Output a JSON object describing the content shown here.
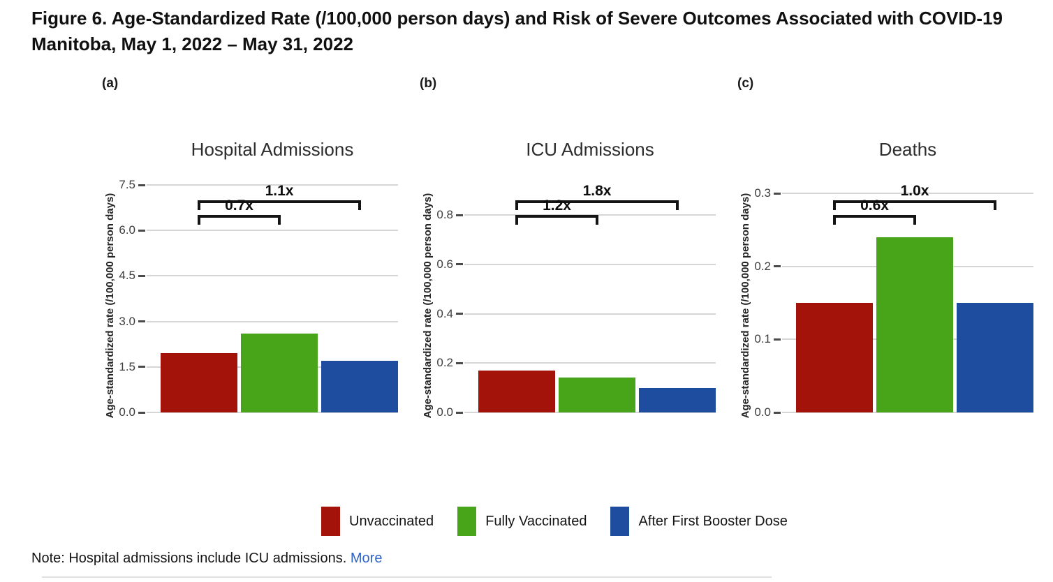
{
  "figure": {
    "title_line1": "Figure 6. Age-Standardized Rate (/100,000 person days) and Risk of Severe Outcomes Associated with COVID-19",
    "title_line2": "Manitoba, May 1, 2022 – May 31, 2022"
  },
  "legend": {
    "items": [
      {
        "label": "Unvaccinated",
        "color": "#a31309"
      },
      {
        "label": "Fully Vaccinated",
        "color": "#48a51a"
      },
      {
        "label": "After First Booster Dose",
        "color": "#1e4c9f"
      }
    ]
  },
  "note": {
    "text": "Note: Hospital admissions include ICU admissions.",
    "link_label": "More"
  },
  "colors": {
    "unvaccinated": "#a31309",
    "fully_vaccinated": "#48a51a",
    "after_first_booster": "#1e4c9f",
    "gridline": "#d6d6d6",
    "bracket": "#141414",
    "link": "#2e62c8"
  },
  "chart_data": [
    {
      "type": "bar",
      "panel_label": "(a)",
      "title": "Hospital Admissions",
      "ylabel": "Age-standardized rate (/100,000 person days)",
      "xlabel": "",
      "categories": [
        "Unvaccinated",
        "Fully Vaccinated",
        "After First Booster Dose"
      ],
      "values": [
        1.95,
        2.6,
        1.7
      ],
      "bar_colors": [
        "#a31309",
        "#48a51a",
        "#1e4c9f"
      ],
      "ylim": [
        0,
        7.5
      ],
      "yticks": [
        0,
        1.5,
        3,
        4.5,
        6,
        7.5
      ],
      "ytick_labels": [
        "0.0",
        "1.5",
        "3.0",
        "4.5",
        "6.0",
        "7.5"
      ],
      "grid": true,
      "legend_position": "bottom",
      "risk_ratios": [
        {
          "label": "0.7x",
          "from_bar": 0,
          "to_bar": 1,
          "row": "lower"
        },
        {
          "label": "1.1x",
          "from_bar": 0,
          "to_bar": 2,
          "row": "upper"
        }
      ]
    },
    {
      "type": "bar",
      "panel_label": "(b)",
      "title": "ICU Admissions",
      "ylabel": "Age-standardized rate (/100,000 person days)",
      "xlabel": "",
      "categories": [
        "Unvaccinated",
        "Fully Vaccinated",
        "After First Booster Dose"
      ],
      "values": [
        0.17,
        0.14,
        0.1
      ],
      "bar_colors": [
        "#a31309",
        "#48a51a",
        "#1e4c9f"
      ],
      "ylim": [
        0,
        0.8
      ],
      "yticks": [
        0,
        0.2,
        0.4,
        0.6,
        0.8
      ],
      "ytick_labels": [
        "0.0",
        "0.2",
        "0.4",
        "0.6",
        "0.8"
      ],
      "grid": true,
      "legend_position": "bottom",
      "risk_ratios": [
        {
          "label": "1.2x",
          "from_bar": 0,
          "to_bar": 1,
          "row": "lower"
        },
        {
          "label": "1.8x",
          "from_bar": 0,
          "to_bar": 2,
          "row": "upper"
        }
      ]
    },
    {
      "type": "bar",
      "panel_label": "(c)",
      "title": "Deaths",
      "ylabel": "Age-standardized rate (/100,000 person days)",
      "xlabel": "",
      "categories": [
        "Unvaccinated",
        "Fully Vaccinated",
        "After First Booster Dose"
      ],
      "values": [
        0.15,
        0.24,
        0.15
      ],
      "bar_colors": [
        "#a31309",
        "#48a51a",
        "#1e4c9f"
      ],
      "ylim": [
        0,
        0.3
      ],
      "yticks": [
        0,
        0.1,
        0.2,
        0.3
      ],
      "ytick_labels": [
        "0.0",
        "0.1",
        "0.2",
        "0.3"
      ],
      "grid": true,
      "legend_position": "bottom",
      "risk_ratios": [
        {
          "label": "0.6x",
          "from_bar": 0,
          "to_bar": 1,
          "row": "lower"
        },
        {
          "label": "1.0x",
          "from_bar": 0,
          "to_bar": 2,
          "row": "upper"
        }
      ]
    }
  ]
}
